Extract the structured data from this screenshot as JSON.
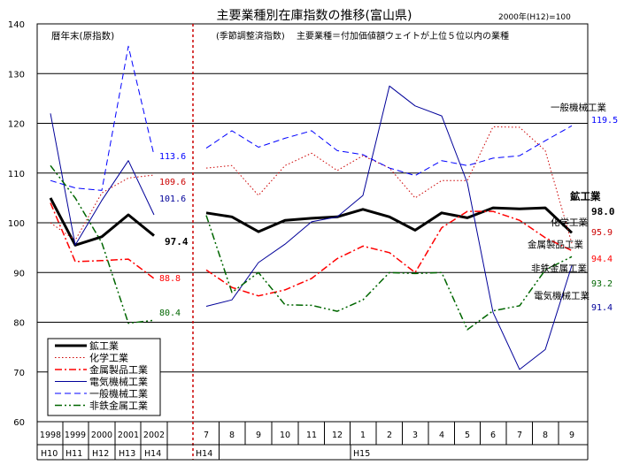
{
  "chart_data": {
    "type": "line",
    "title": "主要業種別在庫指数の推移(富山県)",
    "base_note": "2000年(H12)=100",
    "annotation_left": "暦年末(原指数)",
    "annotation_right": "(季節調整済指数)　 主要業種＝付加価値額ウェイトが上位５位以内の業種",
    "ylim": [
      60,
      140
    ],
    "yticks": [
      60,
      70,
      80,
      90,
      100,
      110,
      120,
      130,
      140
    ],
    "grid": true,
    "legend_position": "bottom-left",
    "annual": {
      "years": [
        "1998",
        "1999",
        "2000",
        "2001",
        "2002"
      ],
      "eras": [
        "H10",
        "H11",
        "H12",
        "H13",
        "H14"
      ]
    },
    "monthly": {
      "months": [
        "7",
        "8",
        "9",
        "10",
        "11",
        "12",
        "1",
        "2",
        "3",
        "4",
        "5",
        "6",
        "7",
        "8",
        "9"
      ],
      "era_h14": "H14",
      "era_h15": "H15"
    },
    "series": [
      {
        "name": "鉱工業",
        "color": "#000000",
        "dash": "solid",
        "width": 3,
        "annual": [
          105,
          95.5,
          97.2,
          101.6,
          97.4
        ],
        "annual_label": "97.4",
        "monthly": [
          102,
          101.2,
          98.2,
          100.5,
          100.9,
          101.2,
          102.7,
          101.2,
          98.5,
          102,
          101,
          103,
          102.8,
          103,
          98
        ],
        "monthly_label_name": "鉱工業",
        "monthly_label": "98.0"
      },
      {
        "name": "化学工業",
        "color": "#cc0000",
        "dash": "dotted",
        "width": 1,
        "annual": [
          100,
          96.5,
          106,
          109,
          109.6
        ],
        "annual_label": "109.6",
        "monthly": [
          111,
          111.5,
          105.5,
          111.5,
          114,
          110.5,
          113.5,
          111,
          105,
          108.5,
          108.5,
          119.3,
          119.2,
          114.5,
          95.9
        ],
        "monthly_label_name": "化学工業",
        "monthly_label": "95.9"
      },
      {
        "name": "金属製品工業",
        "color": "#ff0000",
        "dash": "dashdot",
        "width": 1.5,
        "annual": [
          104,
          92.2,
          92.4,
          92.7,
          88.8
        ],
        "annual_label": "88.8",
        "monthly": [
          90.5,
          87,
          85.3,
          86.5,
          88.8,
          92.8,
          95.3,
          94,
          90,
          99,
          102.3,
          102.3,
          100.5,
          97,
          94.4
        ],
        "monthly_label_name": "金属製品工業",
        "monthly_label": "94.4"
      },
      {
        "name": "電気機械工業",
        "color": "#000099",
        "dash": "solid",
        "width": 1,
        "annual": [
          122,
          95.5,
          104.5,
          112.5,
          101.6
        ],
        "annual_label": "101.6",
        "monthly": [
          83.2,
          84.5,
          92,
          95.7,
          100.2,
          101.2,
          105.5,
          127.5,
          123.5,
          121.5,
          108,
          82,
          70.5,
          74.5,
          91.4
        ],
        "monthly_label_name": "電気機械工業",
        "monthly_label": "91.4"
      },
      {
        "name": "一般機械工業",
        "color": "#0000ff",
        "dash": "dashed",
        "width": 1,
        "annual": [
          108.5,
          107,
          106.5,
          135.5,
          113.6
        ],
        "annual_label": "113.6",
        "monthly": [
          115,
          118.5,
          115.2,
          117,
          118.5,
          114.5,
          113.7,
          111,
          109.5,
          112.5,
          111.5,
          113,
          113.5,
          116.5,
          119.5
        ],
        "monthly_label_name": "一般機械工業",
        "monthly_label": "119.5"
      },
      {
        "name": "非鉄金属工業",
        "color": "#006600",
        "dash": "dashdotdot",
        "width": 1.5,
        "annual": [
          111.5,
          105,
          96,
          79.8,
          80.4
        ],
        "annual_label": "80.4",
        "monthly": [
          101.5,
          86,
          90,
          83.5,
          83.4,
          82.2,
          84.5,
          90,
          89.8,
          90,
          78.5,
          82.3,
          83.3,
          90.5,
          93.2
        ],
        "monthly_label_name": "非鉄金属工業",
        "monthly_label": "93.2"
      }
    ]
  }
}
